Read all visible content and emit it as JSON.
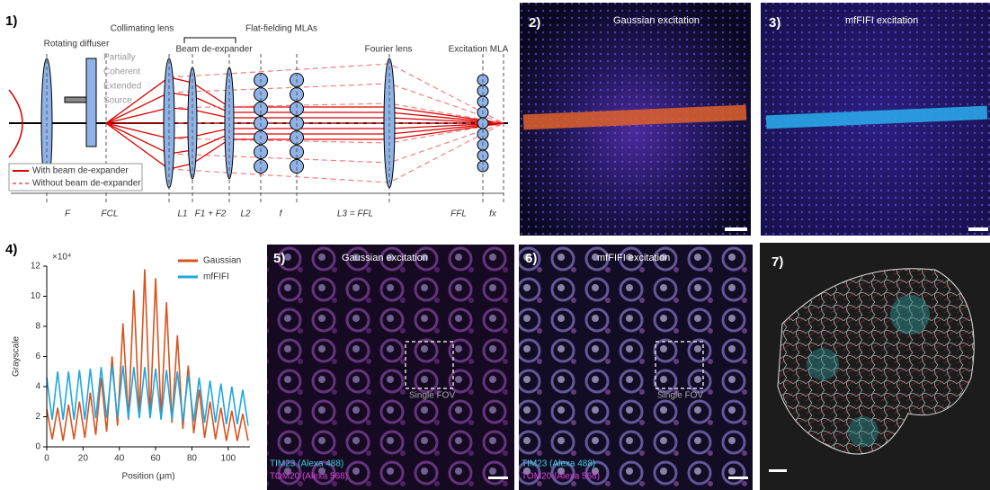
{
  "panel1": {
    "label": "1)",
    "components": [
      "Rotating diffuser",
      "Collimating lens",
      "Beam de-expander",
      "Flat-fielding MLAs",
      "Fourier lens",
      "Excitation MLA"
    ],
    "source_note": [
      "Partially",
      "Coherent",
      "Extended",
      "Source"
    ],
    "legend": [
      "With beam de-expander",
      "Without beam de-expander"
    ],
    "distances": [
      "F",
      "FCL",
      "L1",
      "F1 + F2",
      "L2",
      "f",
      "L3 = FFL",
      "FFL",
      "fx"
    ]
  },
  "panel2": {
    "label": "2)",
    "title": "Gaussian excitation"
  },
  "panel3": {
    "label": "3)",
    "title": "mfFIFI excitation"
  },
  "panel4": {
    "label": "4)"
  },
  "chart_data": {
    "type": "line",
    "x_label": "Position (μm)",
    "y_label": "Grayscale",
    "y_multiplier": "×10⁴",
    "x": [
      0,
      3,
      6,
      9,
      12,
      15,
      18,
      21,
      24,
      27,
      30,
      33,
      36,
      39,
      42,
      45,
      48,
      51,
      54,
      57,
      60,
      63,
      66,
      69,
      72,
      75,
      78,
      81,
      84,
      87,
      90,
      93,
      96,
      99,
      102,
      105,
      108,
      111
    ],
    "series": [
      {
        "name": "Gaussian",
        "color": "#d9531e",
        "values": [
          2.5,
          0.5,
          2.6,
          0.4,
          2.8,
          0.5,
          3.0,
          0.6,
          3.6,
          0.8,
          4.6,
          1.0,
          6.0,
          1.4,
          8.2,
          1.8,
          10.4,
          2.0,
          11.8,
          2.0,
          11.2,
          1.9,
          9.6,
          1.6,
          7.4,
          1.2,
          5.4,
          0.9,
          3.8,
          0.6,
          3.0,
          0.5,
          2.6,
          0.4,
          2.4,
          0.4,
          2.2,
          0.4
        ]
      },
      {
        "name": "mfFIFI",
        "color": "#1ea7e1",
        "values": [
          4.6,
          1.8,
          5.0,
          1.8,
          5.0,
          1.8,
          5.1,
          1.8,
          5.2,
          1.9,
          5.3,
          1.9,
          5.4,
          1.9,
          5.4,
          1.9,
          5.3,
          1.9,
          5.3,
          1.9,
          5.2,
          1.8,
          5.1,
          1.8,
          5.0,
          1.7,
          4.8,
          1.7,
          4.6,
          1.6,
          4.4,
          1.6,
          4.2,
          1.5,
          4.0,
          1.5,
          3.8,
          1.4
        ]
      }
    ],
    "xlim": [
      0,
      112
    ],
    "xticks": [
      0,
      20,
      40,
      60,
      80,
      100
    ],
    "ylim": [
      0,
      12
    ],
    "yticks": [
      0,
      2,
      4,
      6,
      8,
      10,
      12
    ],
    "legend": "upper right"
  },
  "panel5": {
    "label": "5)",
    "title": "Gaussian excitation",
    "roi": "Single FOV",
    "stains": [
      "TIM23 (Alexa 488)",
      "TOM20 (Alexa 568)"
    ]
  },
  "panel6": {
    "label": "6)",
    "title": "mfFIFI excitation",
    "roi": "Single FOV",
    "stains": [
      "TIM23 (Alexa 488)",
      "TOM20 (Alexa 568)"
    ]
  },
  "panel7": {
    "label": "7)"
  }
}
